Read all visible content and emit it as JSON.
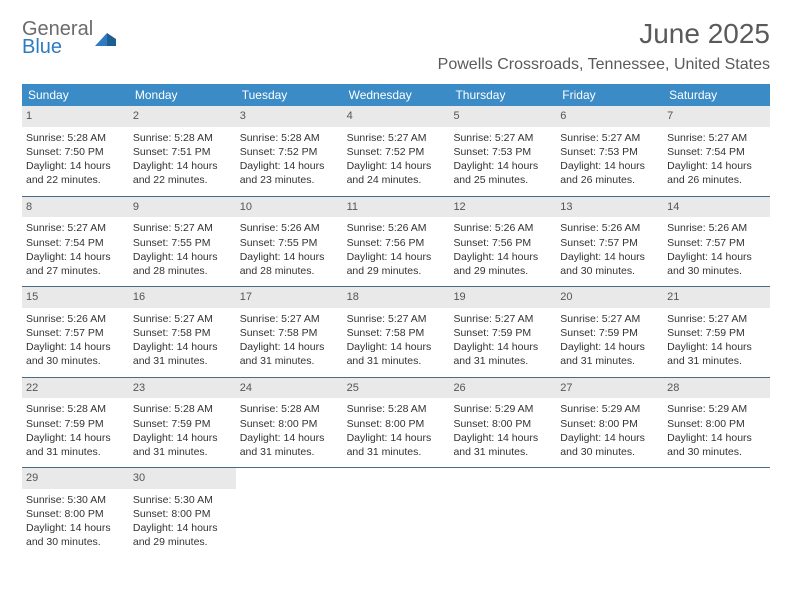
{
  "brand": {
    "line1": "General",
    "line2": "Blue"
  },
  "title": "June 2025",
  "location": "Powells Crossroads, Tennessee, United States",
  "colors": {
    "header_bg": "#3b8bc6",
    "header_text": "#ffffff",
    "week_divider": "#4a6a88",
    "daynum_bg": "#e9e9e9",
    "daynum_text": "#555555",
    "body_text": "#333333",
    "title_text": "#5a5a5a",
    "logo_gray": "#6b6b6b",
    "logo_blue": "#2f7bbf"
  },
  "dow": [
    "Sunday",
    "Monday",
    "Tuesday",
    "Wednesday",
    "Thursday",
    "Friday",
    "Saturday"
  ],
  "weeks": [
    [
      {
        "n": "1",
        "sr": "Sunrise: 5:28 AM",
        "ss": "Sunset: 7:50 PM",
        "dl": "Daylight: 14 hours and 22 minutes."
      },
      {
        "n": "2",
        "sr": "Sunrise: 5:28 AM",
        "ss": "Sunset: 7:51 PM",
        "dl": "Daylight: 14 hours and 22 minutes."
      },
      {
        "n": "3",
        "sr": "Sunrise: 5:28 AM",
        "ss": "Sunset: 7:52 PM",
        "dl": "Daylight: 14 hours and 23 minutes."
      },
      {
        "n": "4",
        "sr": "Sunrise: 5:27 AM",
        "ss": "Sunset: 7:52 PM",
        "dl": "Daylight: 14 hours and 24 minutes."
      },
      {
        "n": "5",
        "sr": "Sunrise: 5:27 AM",
        "ss": "Sunset: 7:53 PM",
        "dl": "Daylight: 14 hours and 25 minutes."
      },
      {
        "n": "6",
        "sr": "Sunrise: 5:27 AM",
        "ss": "Sunset: 7:53 PM",
        "dl": "Daylight: 14 hours and 26 minutes."
      },
      {
        "n": "7",
        "sr": "Sunrise: 5:27 AM",
        "ss": "Sunset: 7:54 PM",
        "dl": "Daylight: 14 hours and 26 minutes."
      }
    ],
    [
      {
        "n": "8",
        "sr": "Sunrise: 5:27 AM",
        "ss": "Sunset: 7:54 PM",
        "dl": "Daylight: 14 hours and 27 minutes."
      },
      {
        "n": "9",
        "sr": "Sunrise: 5:27 AM",
        "ss": "Sunset: 7:55 PM",
        "dl": "Daylight: 14 hours and 28 minutes."
      },
      {
        "n": "10",
        "sr": "Sunrise: 5:26 AM",
        "ss": "Sunset: 7:55 PM",
        "dl": "Daylight: 14 hours and 28 minutes."
      },
      {
        "n": "11",
        "sr": "Sunrise: 5:26 AM",
        "ss": "Sunset: 7:56 PM",
        "dl": "Daylight: 14 hours and 29 minutes."
      },
      {
        "n": "12",
        "sr": "Sunrise: 5:26 AM",
        "ss": "Sunset: 7:56 PM",
        "dl": "Daylight: 14 hours and 29 minutes."
      },
      {
        "n": "13",
        "sr": "Sunrise: 5:26 AM",
        "ss": "Sunset: 7:57 PM",
        "dl": "Daylight: 14 hours and 30 minutes."
      },
      {
        "n": "14",
        "sr": "Sunrise: 5:26 AM",
        "ss": "Sunset: 7:57 PM",
        "dl": "Daylight: 14 hours and 30 minutes."
      }
    ],
    [
      {
        "n": "15",
        "sr": "Sunrise: 5:26 AM",
        "ss": "Sunset: 7:57 PM",
        "dl": "Daylight: 14 hours and 30 minutes."
      },
      {
        "n": "16",
        "sr": "Sunrise: 5:27 AM",
        "ss": "Sunset: 7:58 PM",
        "dl": "Daylight: 14 hours and 31 minutes."
      },
      {
        "n": "17",
        "sr": "Sunrise: 5:27 AM",
        "ss": "Sunset: 7:58 PM",
        "dl": "Daylight: 14 hours and 31 minutes."
      },
      {
        "n": "18",
        "sr": "Sunrise: 5:27 AM",
        "ss": "Sunset: 7:58 PM",
        "dl": "Daylight: 14 hours and 31 minutes."
      },
      {
        "n": "19",
        "sr": "Sunrise: 5:27 AM",
        "ss": "Sunset: 7:59 PM",
        "dl": "Daylight: 14 hours and 31 minutes."
      },
      {
        "n": "20",
        "sr": "Sunrise: 5:27 AM",
        "ss": "Sunset: 7:59 PM",
        "dl": "Daylight: 14 hours and 31 minutes."
      },
      {
        "n": "21",
        "sr": "Sunrise: 5:27 AM",
        "ss": "Sunset: 7:59 PM",
        "dl": "Daylight: 14 hours and 31 minutes."
      }
    ],
    [
      {
        "n": "22",
        "sr": "Sunrise: 5:28 AM",
        "ss": "Sunset: 7:59 PM",
        "dl": "Daylight: 14 hours and 31 minutes."
      },
      {
        "n": "23",
        "sr": "Sunrise: 5:28 AM",
        "ss": "Sunset: 7:59 PM",
        "dl": "Daylight: 14 hours and 31 minutes."
      },
      {
        "n": "24",
        "sr": "Sunrise: 5:28 AM",
        "ss": "Sunset: 8:00 PM",
        "dl": "Daylight: 14 hours and 31 minutes."
      },
      {
        "n": "25",
        "sr": "Sunrise: 5:28 AM",
        "ss": "Sunset: 8:00 PM",
        "dl": "Daylight: 14 hours and 31 minutes."
      },
      {
        "n": "26",
        "sr": "Sunrise: 5:29 AM",
        "ss": "Sunset: 8:00 PM",
        "dl": "Daylight: 14 hours and 31 minutes."
      },
      {
        "n": "27",
        "sr": "Sunrise: 5:29 AM",
        "ss": "Sunset: 8:00 PM",
        "dl": "Daylight: 14 hours and 30 minutes."
      },
      {
        "n": "28",
        "sr": "Sunrise: 5:29 AM",
        "ss": "Sunset: 8:00 PM",
        "dl": "Daylight: 14 hours and 30 minutes."
      }
    ],
    [
      {
        "n": "29",
        "sr": "Sunrise: 5:30 AM",
        "ss": "Sunset: 8:00 PM",
        "dl": "Daylight: 14 hours and 30 minutes."
      },
      {
        "n": "30",
        "sr": "Sunrise: 5:30 AM",
        "ss": "Sunset: 8:00 PM",
        "dl": "Daylight: 14 hours and 29 minutes."
      },
      null,
      null,
      null,
      null,
      null
    ]
  ]
}
